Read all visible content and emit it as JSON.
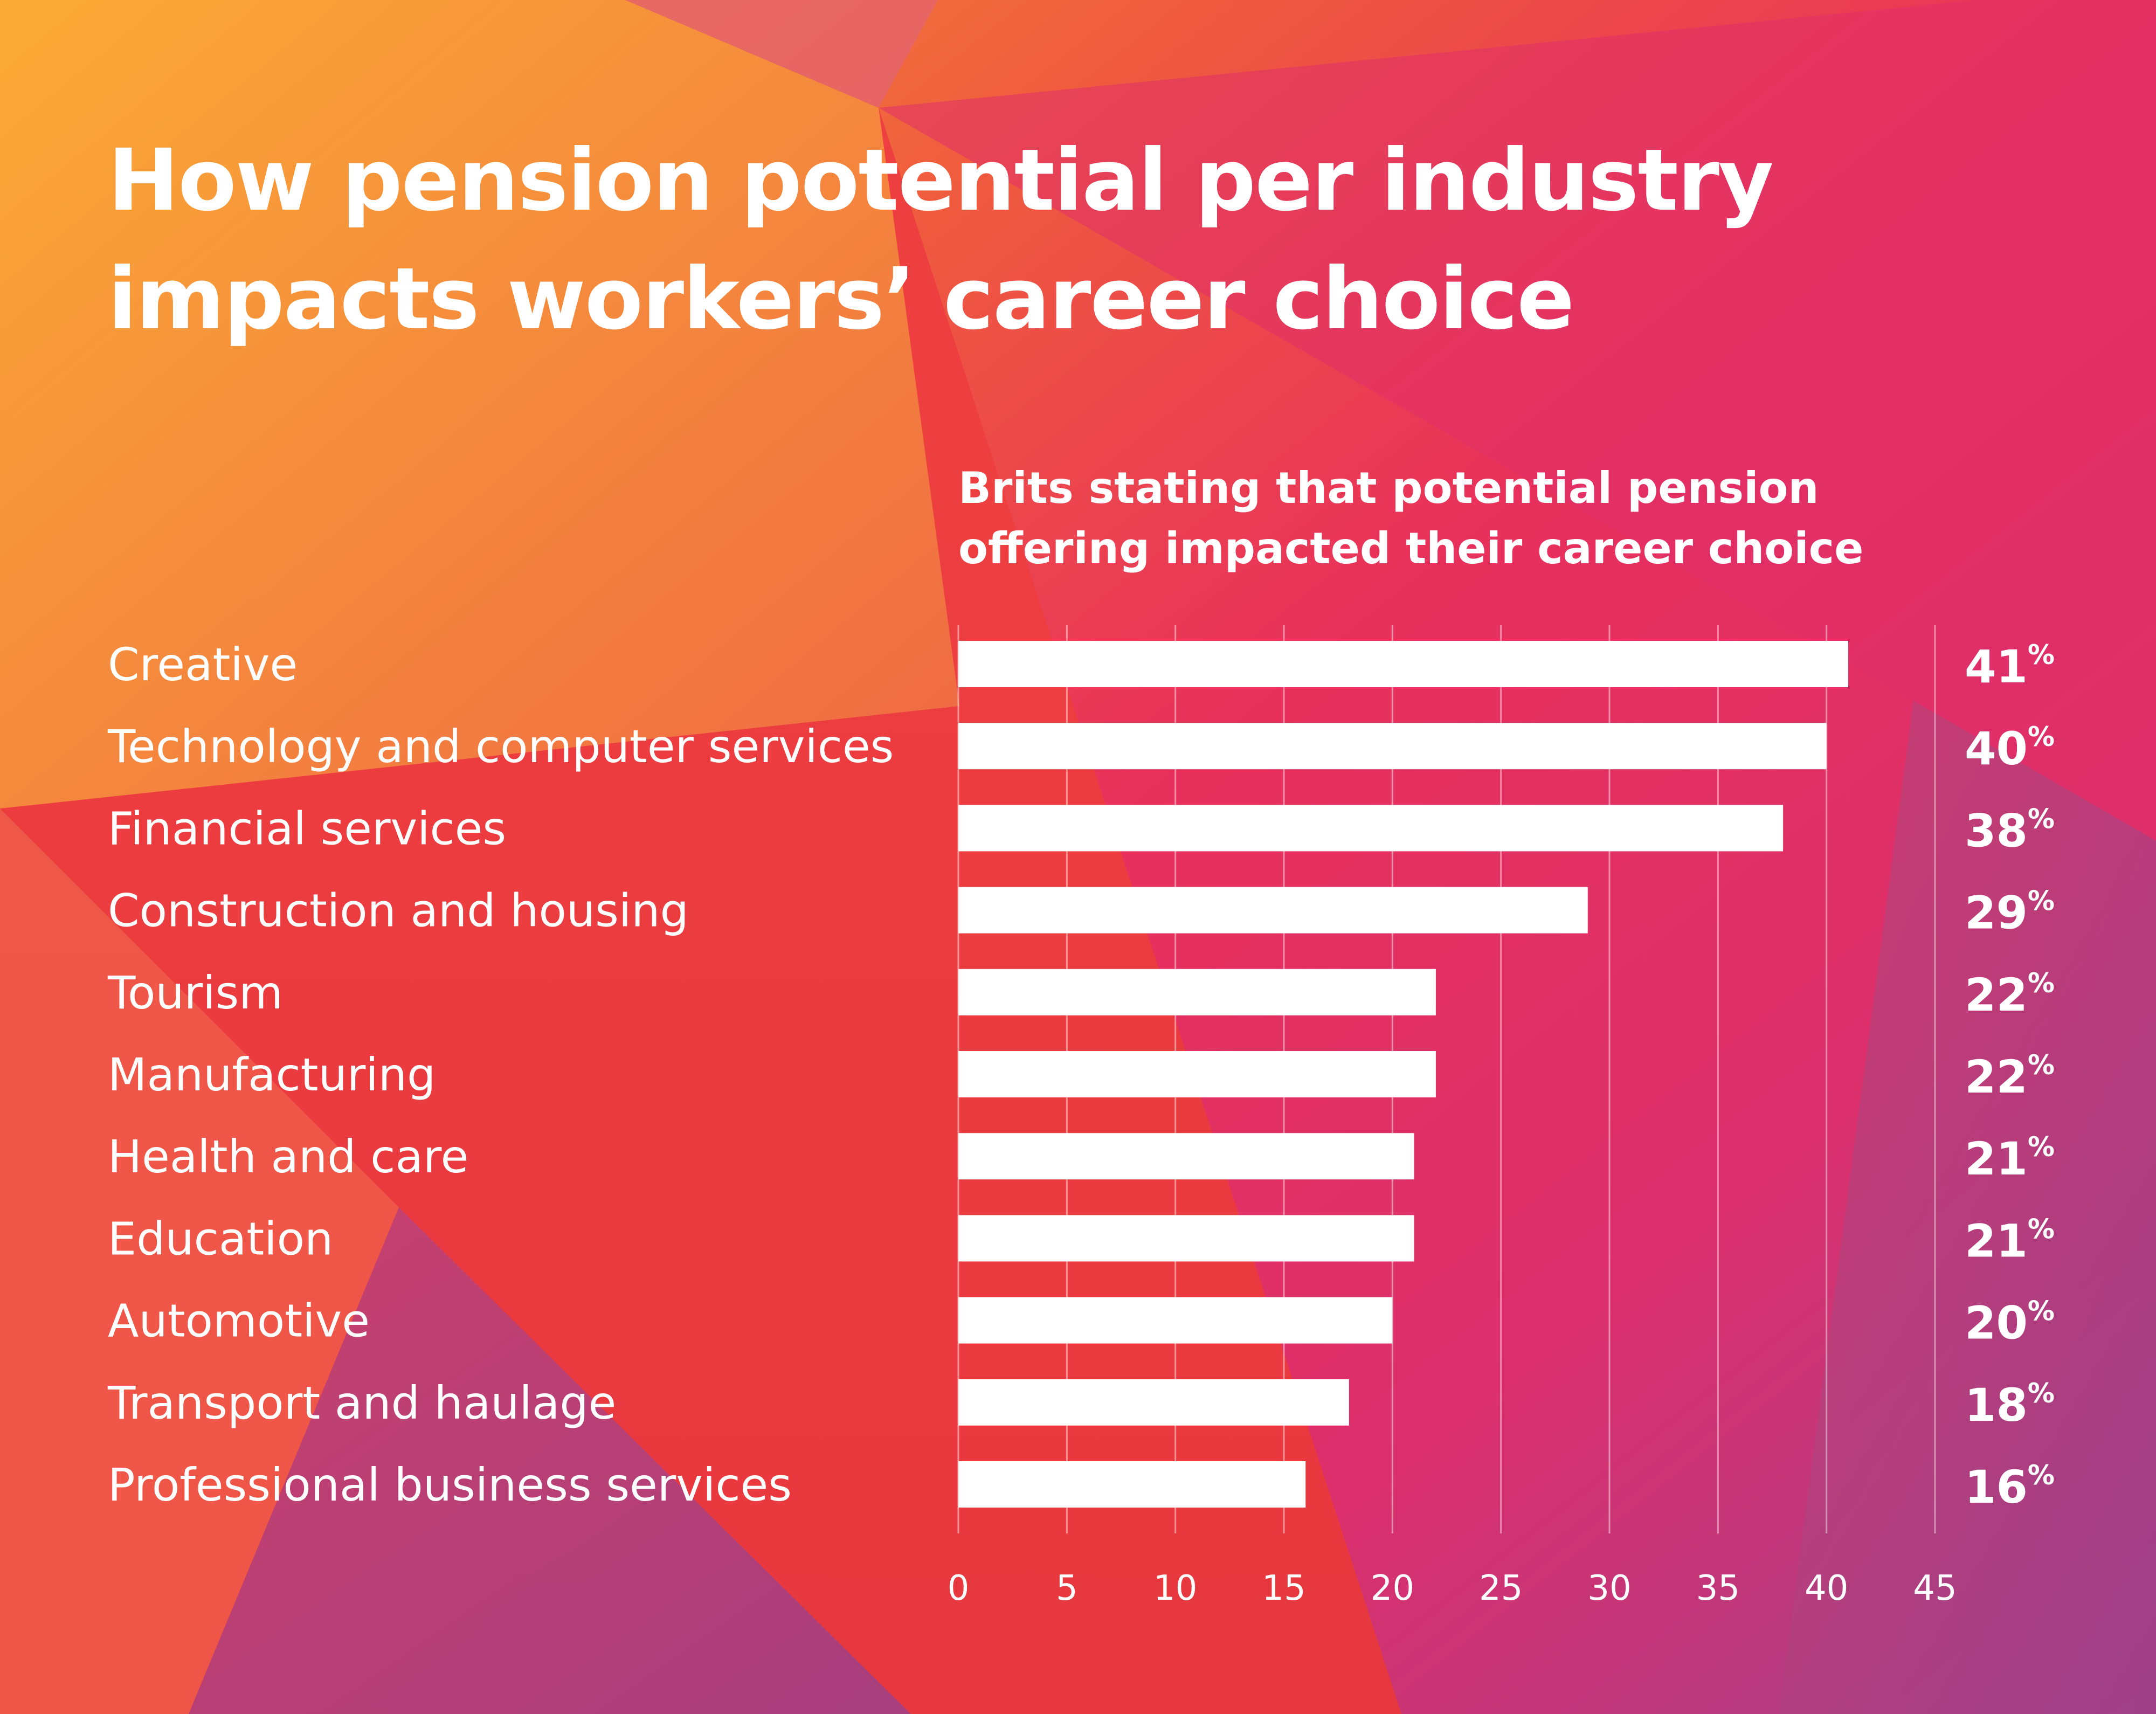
{
  "title": {
    "line1": "How pension potential per industry",
    "line2": "impacts workers’ career choice"
  },
  "subtitle": {
    "line1": "Brits stating that potential pension",
    "line2": "offering impacted their career choice"
  },
  "colors": {
    "bar": "#ffffff",
    "text": "#ffffff",
    "grid": "#ffffff",
    "bg_orange": "#f9a636",
    "bg_red": "#ec4040",
    "bg_pink": "#e72b64",
    "bg_magenta": "#d6306e",
    "bg_purple": "#9f3f8a"
  },
  "chart_data": {
    "type": "bar",
    "orientation": "horizontal",
    "title": "How pension potential per industry impacts workers’ career choice",
    "subtitle": "Brits stating that potential pension offering impacted their career choice",
    "categories": [
      "Creative",
      "Technology and computer services",
      "Financial services",
      "Construction and housing",
      "Tourism",
      "Manufacturing",
      "Health and care",
      "Education",
      "Automotive",
      "Transport and haulage",
      "Professional business services"
    ],
    "values": [
      41,
      40,
      38,
      29,
      22,
      22,
      21,
      21,
      20,
      18,
      16
    ],
    "value_labels": [
      "41",
      "40",
      "38",
      "29",
      "22",
      "22",
      "21",
      "21",
      "20",
      "18",
      "16"
    ],
    "value_suffix": "%",
    "xlim": [
      0,
      45
    ],
    "xticks": [
      "0",
      "5",
      "10",
      "15",
      "20",
      "25",
      "30",
      "35",
      "40",
      "45"
    ],
    "xlabel": "",
    "ylabel": "",
    "grid": true,
    "legend": "none"
  }
}
